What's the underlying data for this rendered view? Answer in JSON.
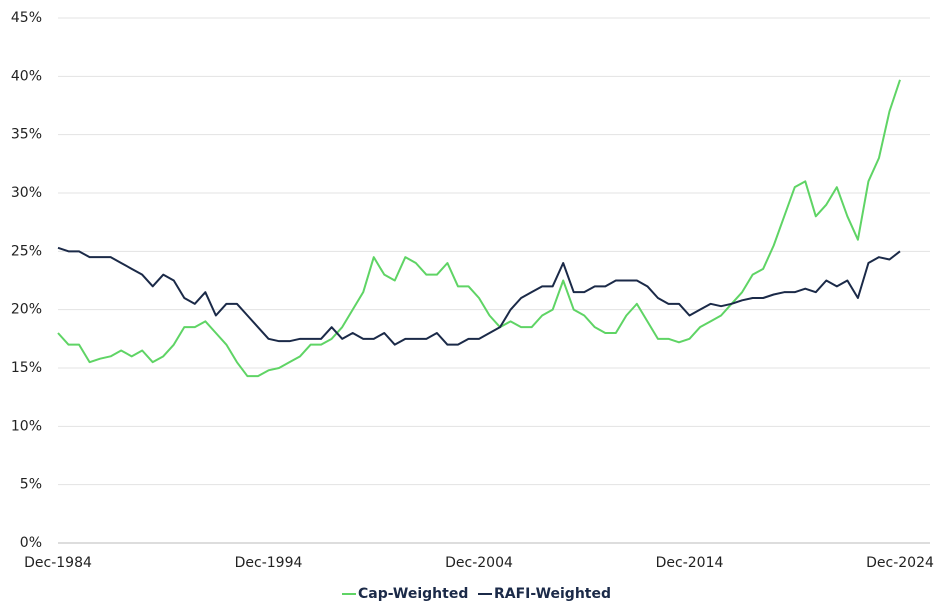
{
  "chart_data": {
    "type": "line",
    "x": [
      1984.92,
      1985.42,
      1985.92,
      1986.42,
      1986.92,
      1987.42,
      1987.92,
      1988.42,
      1988.92,
      1989.42,
      1989.92,
      1990.42,
      1990.92,
      1991.42,
      1991.92,
      1992.42,
      1992.92,
      1993.42,
      1993.92,
      1994.42,
      1994.92,
      1995.42,
      1995.92,
      1996.42,
      1996.92,
      1997.42,
      1997.92,
      1998.42,
      1998.92,
      1999.42,
      1999.92,
      2000.42,
      2000.92,
      2001.42,
      2001.92,
      2002.42,
      2002.92,
      2003.42,
      2003.92,
      2004.42,
      2004.92,
      2005.42,
      2005.92,
      2006.42,
      2006.92,
      2007.42,
      2007.92,
      2008.42,
      2008.92,
      2009.42,
      2009.92,
      2010.42,
      2010.92,
      2011.42,
      2011.92,
      2012.42,
      2012.92,
      2013.42,
      2013.92,
      2014.42,
      2014.92,
      2015.42,
      2015.92,
      2016.42,
      2016.92,
      2017.42,
      2017.92,
      2018.42,
      2018.92,
      2019.42,
      2019.92,
      2020.42,
      2020.92,
      2021.42,
      2021.92,
      2022.42,
      2022.92,
      2023.42,
      2023.92,
      2024.42,
      2024.92
    ],
    "series": [
      {
        "name": "Cap-Weighted",
        "color": "#5fd465",
        "values": [
          18,
          17,
          17,
          15.5,
          15.8,
          16,
          16.5,
          16,
          16.5,
          15.5,
          16,
          17,
          18.5,
          18.5,
          19,
          18,
          17,
          15.5,
          14.3,
          14.3,
          14.8,
          15,
          15.5,
          16,
          17,
          17,
          17.5,
          18.5,
          20,
          21.5,
          24.5,
          23,
          22.5,
          24.5,
          24,
          23,
          23,
          24,
          22,
          22,
          21,
          19.5,
          18.5,
          19,
          18.5,
          18.5,
          19.5,
          20,
          22.5,
          20,
          19.5,
          18.5,
          18,
          18,
          19.5,
          20.5,
          19,
          17.5,
          17.5,
          17.2,
          17.5,
          18.5,
          19,
          19.5,
          20.5,
          21.5,
          23,
          23.5,
          25.5,
          28,
          30.5,
          31,
          28,
          29,
          30.5,
          28,
          26,
          31,
          33,
          37,
          39.7
        ]
      },
      {
        "name": "RAFI-Weighted",
        "color": "#1b2a48",
        "values": [
          25.3,
          25,
          25,
          24.5,
          24.5,
          24.5,
          24,
          23.5,
          23,
          22,
          23,
          22.5,
          21,
          20.5,
          21.5,
          19.5,
          20.5,
          20.5,
          19.5,
          18.5,
          17.5,
          17.3,
          17.3,
          17.5,
          17.5,
          17.5,
          18.5,
          17.5,
          18,
          17.5,
          17.5,
          18,
          17,
          17.5,
          17.5,
          17.5,
          18,
          17,
          17,
          17.5,
          17.5,
          18,
          18.5,
          20,
          21,
          21.5,
          22,
          22,
          24,
          21.5,
          21.5,
          22,
          22,
          22.5,
          22.5,
          22.5,
          22,
          21,
          20.5,
          20.5,
          19.5,
          20,
          20.5,
          20.3,
          20.5,
          20.8,
          21,
          21,
          21.3,
          21.5,
          21.5,
          21.8,
          21.5,
          22.5,
          22,
          22.5,
          21,
          24,
          24.5,
          24.3,
          25
        ]
      }
    ],
    "xlim": [
      1984.92,
      2024.92
    ],
    "xticks": [
      {
        "value": 1984.92,
        "label": "Dec-1984"
      },
      {
        "value": 1994.92,
        "label": "Dec-1994"
      },
      {
        "value": 2004.92,
        "label": "Dec-2004"
      },
      {
        "value": 2014.92,
        "label": "Dec-2014"
      },
      {
        "value": 2024.92,
        "label": "Dec-2024"
      }
    ],
    "ylim": [
      0,
      45
    ],
    "yticks": [
      {
        "value": 0,
        "label": "0%"
      },
      {
        "value": 5,
        "label": "5%"
      },
      {
        "value": 10,
        "label": "10%"
      },
      {
        "value": 15,
        "label": "15%"
      },
      {
        "value": 20,
        "label": "20%"
      },
      {
        "value": 25,
        "label": "25%"
      },
      {
        "value": 30,
        "label": "30%"
      },
      {
        "value": 35,
        "label": "35%"
      },
      {
        "value": 40,
        "label": "40%"
      },
      {
        "value": 45,
        "label": "45%"
      }
    ],
    "grid": true
  }
}
